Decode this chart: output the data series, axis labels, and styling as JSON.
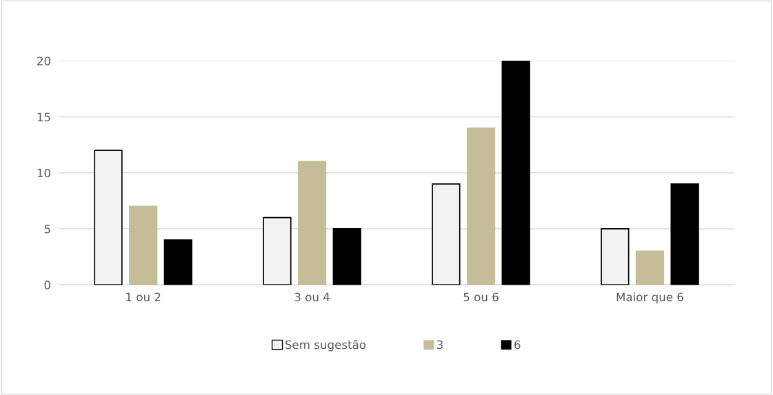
{
  "chart_data": {
    "type": "bar",
    "categories": [
      "1 ou 2",
      "3 ou 4",
      "5 ou 6",
      "Maior que 6"
    ],
    "series": [
      {
        "name": "Sem sugestão",
        "color": "#f2f2f2",
        "values": [
          12,
          6,
          9,
          5
        ]
      },
      {
        "name": "3",
        "color": "#c4bd97",
        "values": [
          7,
          11,
          14,
          3
        ]
      },
      {
        "name": "6",
        "color": "#000000",
        "values": [
          4,
          5,
          20,
          9
        ]
      }
    ],
    "ylim": [
      0,
      20
    ],
    "yticks": [
      0,
      5,
      10,
      15,
      20
    ],
    "grid": "y",
    "legend": "bottom"
  }
}
